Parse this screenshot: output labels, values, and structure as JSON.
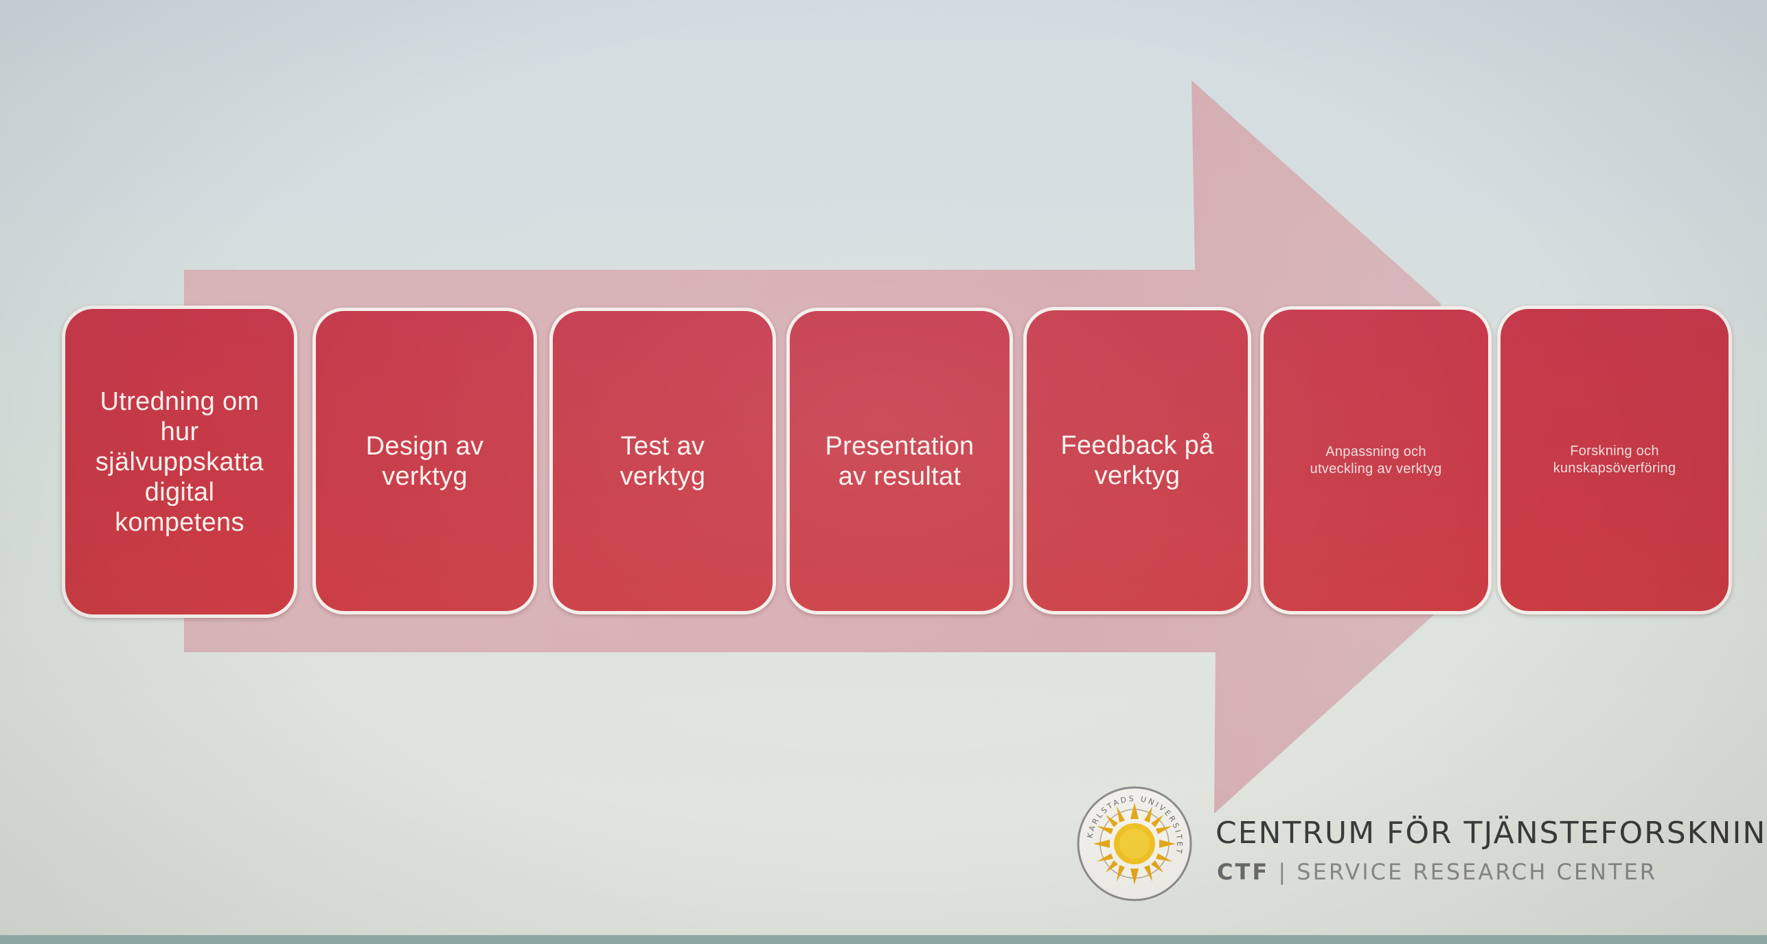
{
  "steps": [
    {
      "label": "Utredning om\nhur\nsjälvuppskatta\ndigital\nkompetens"
    },
    {
      "label": "Design av\nverktyg"
    },
    {
      "label": "Test av\nverktyg"
    },
    {
      "label": "Presentation\nav resultat"
    },
    {
      "label": "Feedback på\nverktyg"
    },
    {
      "label": "Anpassning och\nutveckling av verktyg"
    },
    {
      "label": "Forskning och\nkunskapsöverföring"
    }
  ],
  "brand": {
    "title": "CENTRUM FÖR TJÄNSTEFORSKNIN",
    "sub_abbr": "CTF",
    "sub_sep": "|",
    "sub_text": "SERVICE RESEARCH CENTER",
    "seal_text": "KARLSTADS UNIVERSITET"
  },
  "colors": {
    "step_fill": "#c73a47",
    "arrow_fill": "#d3a9ae",
    "background": "#d7e0dc"
  }
}
